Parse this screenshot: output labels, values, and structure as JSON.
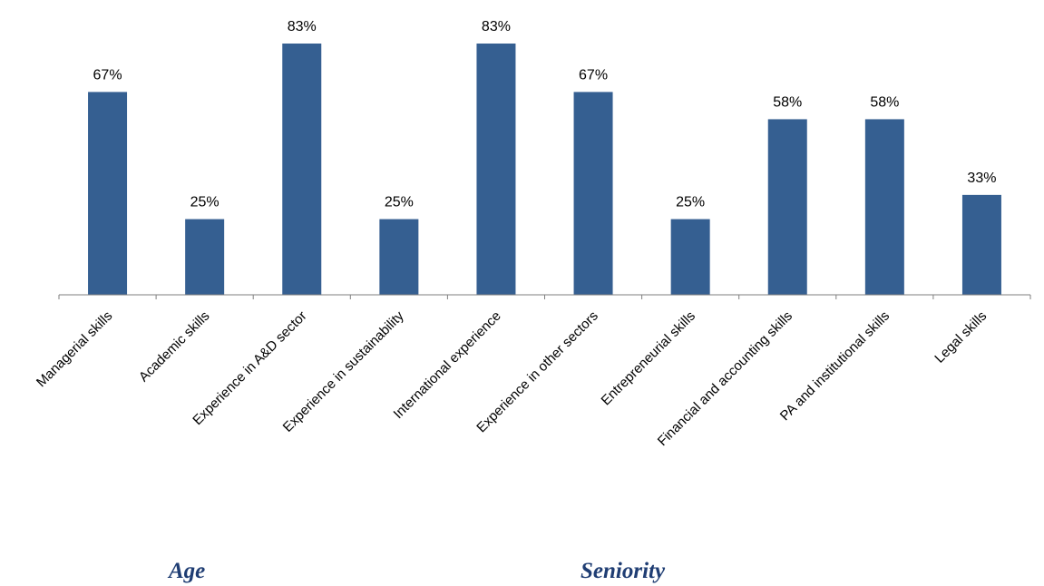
{
  "chart_data": {
    "type": "bar",
    "categories": [
      "Managerial skills",
      "Academic skills",
      "Experience in A&D sector",
      "Experience in sustainability",
      "International experience",
      "Experience in other sectors",
      "Entrepreneurial skills",
      "Financial and accounting skills",
      "PA and institutional skills",
      "Legal skills"
    ],
    "values": [
      67,
      25,
      83,
      25,
      83,
      67,
      25,
      58,
      58,
      33
    ],
    "data_labels": [
      "67%",
      "25%",
      "83%",
      "25%",
      "83%",
      "67%",
      "25%",
      "58%",
      "58%",
      "33%"
    ],
    "ylim": [
      0,
      100
    ],
    "grid": false,
    "legend": "none",
    "bar_color": "#355F91"
  },
  "captions": {
    "age": "Age",
    "seniority": "Seniority"
  }
}
